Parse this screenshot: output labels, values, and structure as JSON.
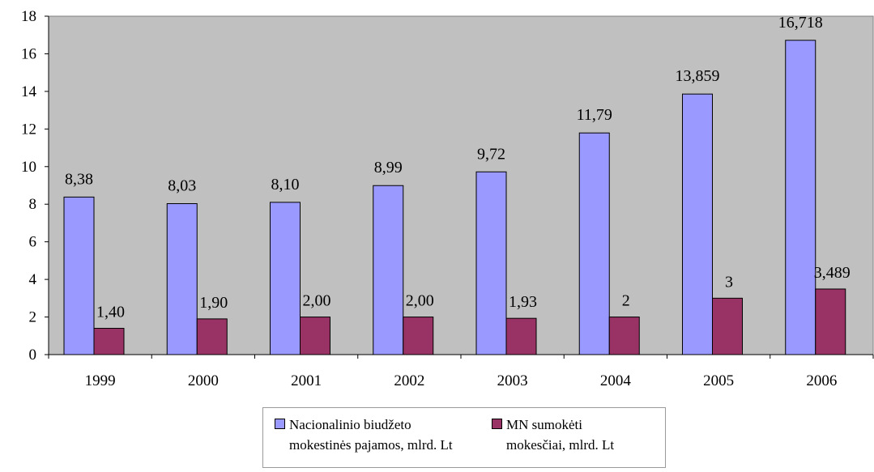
{
  "chart_data": {
    "type": "bar",
    "categories": [
      "1999",
      "2000",
      "2001",
      "2002",
      "2003",
      "2004",
      "2005",
      "2006"
    ],
    "series": [
      {
        "name": "Nacionalinio biudžeto mokestinės pajamos, mlrd. Lt",
        "legend_lines": [
          "Nacionalinio biudžeto",
          "mokestinės pajamos, mlrd. Lt"
        ],
        "color": "#9999ff",
        "values": [
          8.38,
          8.03,
          8.1,
          8.99,
          9.72,
          11.79,
          13.859,
          16.718
        ],
        "labels": [
          "8,38",
          "8,03",
          "8,10",
          "8,99",
          "9,72",
          "11,79",
          "13,859",
          "16,718"
        ]
      },
      {
        "name": "MN sumokėti mokesčiai, mlrd. Lt",
        "legend_lines": [
          "MN sumokėti",
          "mokesčiai, mlrd. Lt"
        ],
        "color": "#993366",
        "values": [
          1.4,
          1.9,
          2.0,
          2.0,
          1.93,
          2,
          3,
          3.489
        ],
        "labels": [
          "1,40",
          "1,90",
          "2,00",
          "2,00",
          "1,93",
          "2",
          "3",
          "3,489"
        ]
      }
    ],
    "yticks": [
      "0",
      "2",
      "4",
      "6",
      "8",
      "10",
      "12",
      "14",
      "16",
      "18"
    ],
    "ylim": [
      0,
      18
    ],
    "grid": false,
    "plot_background": "#c0c0c0",
    "legend_position": "bottom"
  }
}
